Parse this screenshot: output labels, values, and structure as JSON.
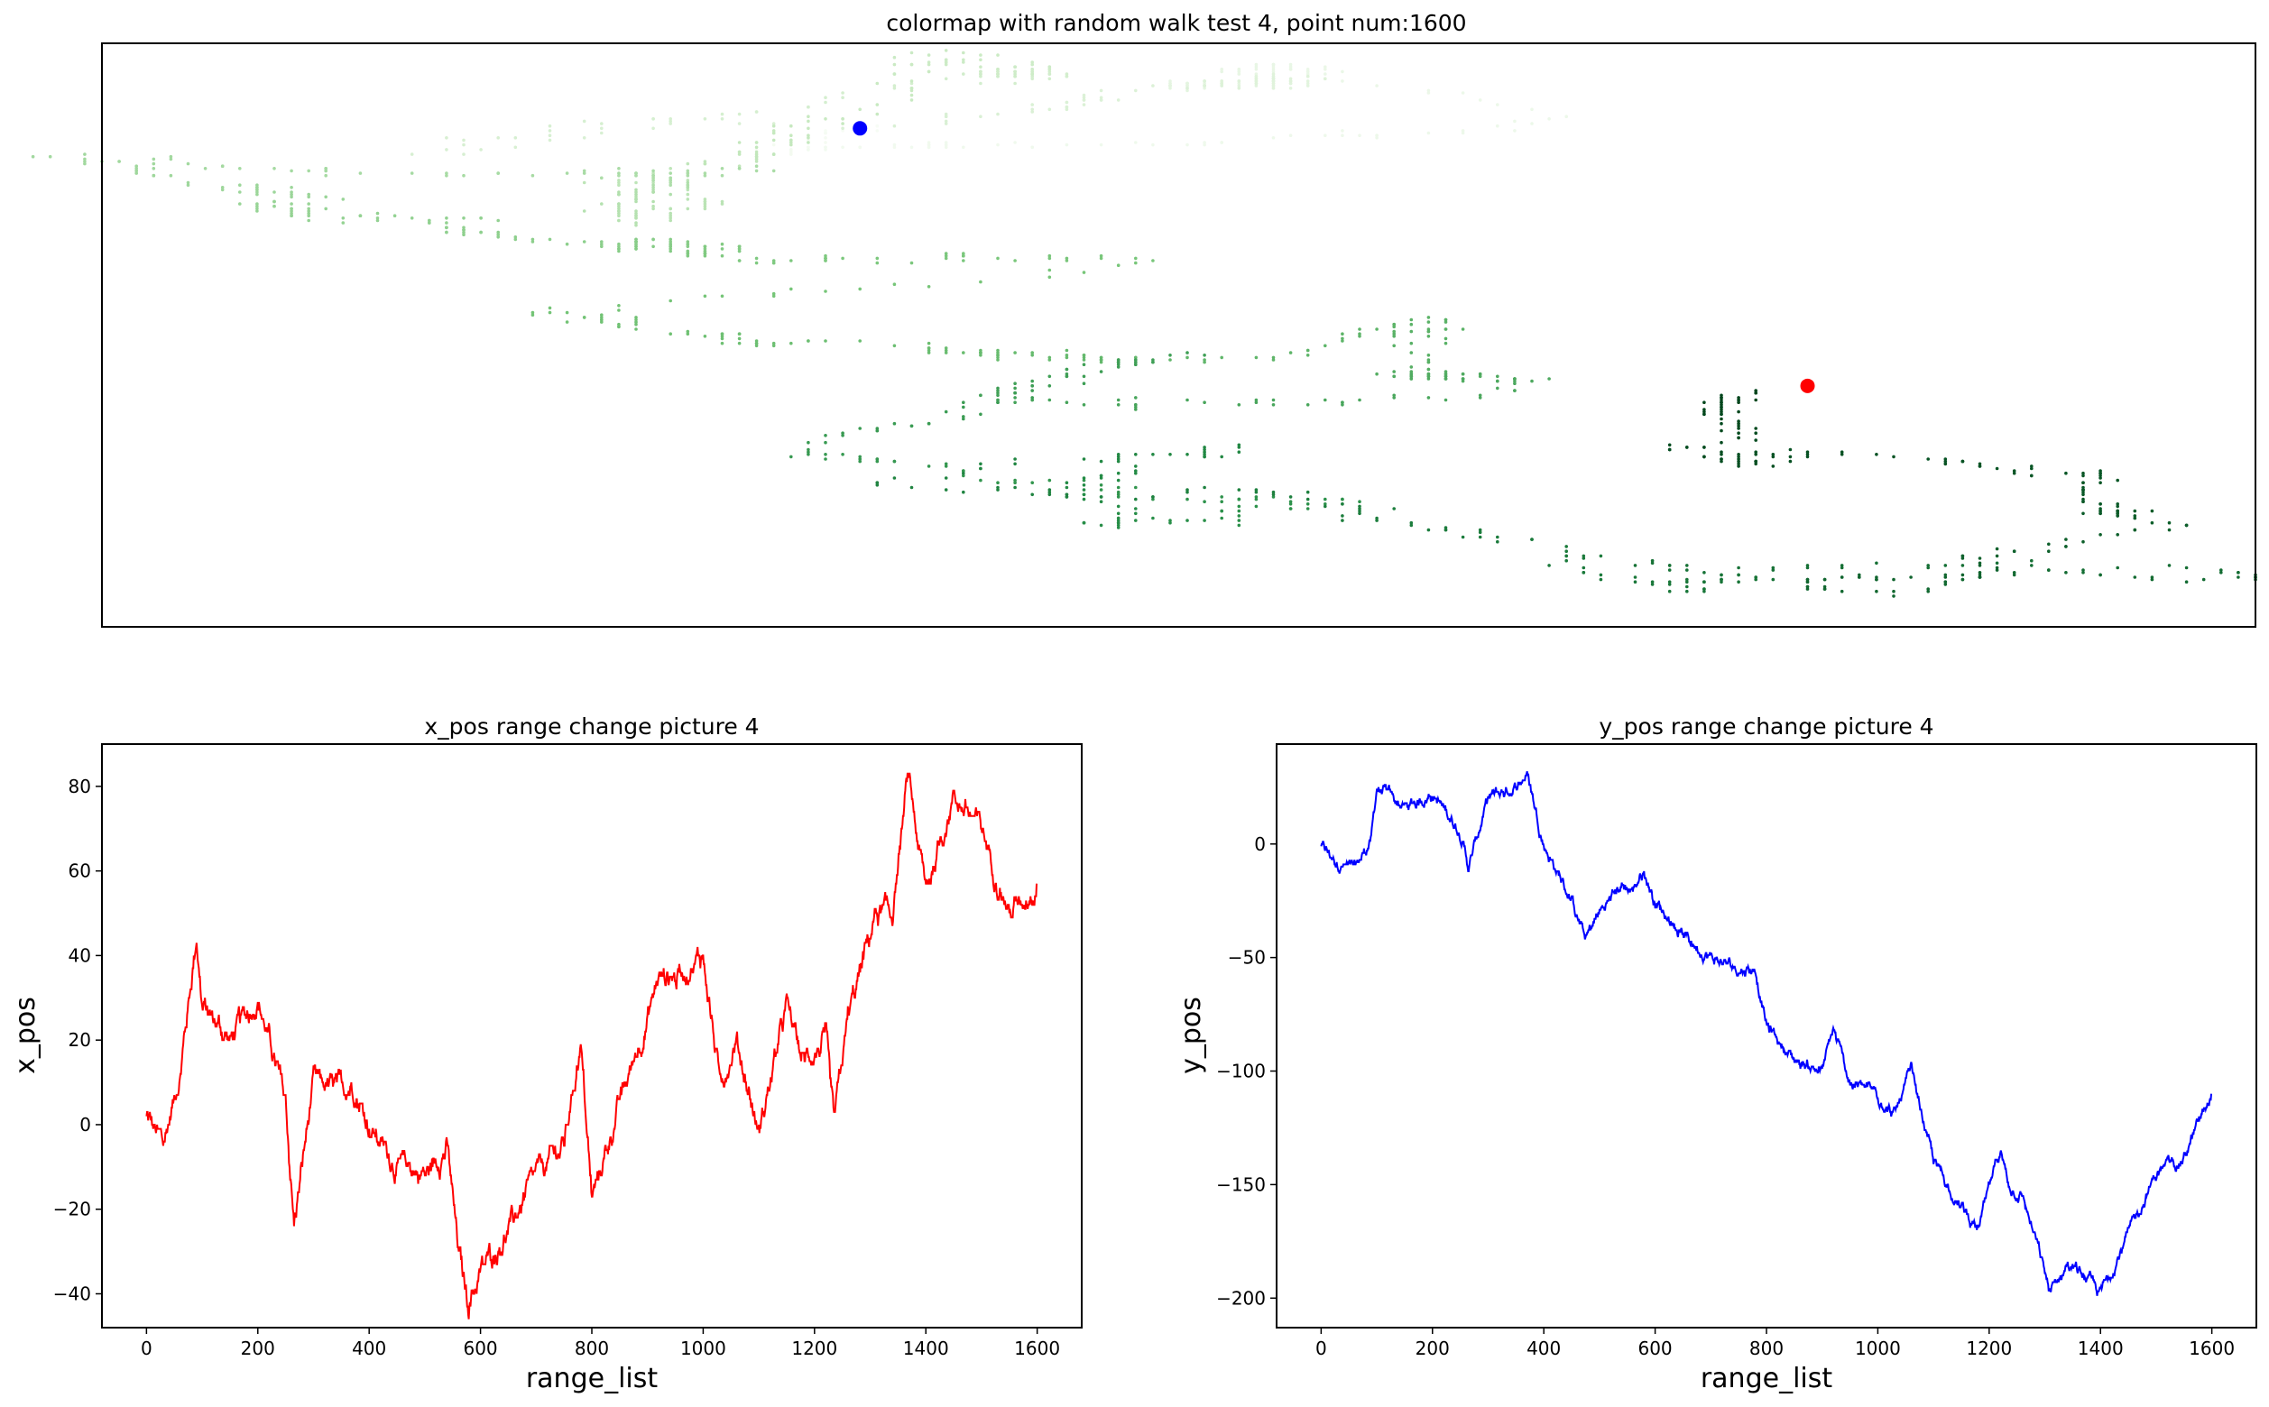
{
  "chart_data": [
    {
      "type": "scatter",
      "title": "colormap with random walk test 4, point num:1600",
      "colormap": "Greens",
      "axes_visible": false,
      "xlim": [
        -42,
        83
      ],
      "ylim": [
        -212,
        35
      ],
      "point_count": 1600,
      "start_point": {
        "x": 2,
        "y": -1,
        "color": "#0000ff"
      },
      "end_point": {
        "x": 57,
        "y": -110,
        "color": "#ff0000"
      },
      "path_keypoints": [
        {
          "step": 0,
          "x": 2,
          "y": -1
        },
        {
          "step": 30,
          "x": -5,
          "y": -8
        },
        {
          "step": 60,
          "x": 12,
          "y": -12
        },
        {
          "step": 90,
          "x": 45,
          "y": 2
        },
        {
          "step": 100,
          "x": 28,
          "y": 25
        },
        {
          "step": 150,
          "x": 20,
          "y": 16
        },
        {
          "step": 200,
          "x": 30,
          "y": 22
        },
        {
          "step": 250,
          "x": 5,
          "y": 6
        },
        {
          "step": 265,
          "x": -24,
          "y": -10
        },
        {
          "step": 300,
          "x": 10,
          "y": 20
        },
        {
          "step": 350,
          "x": 8,
          "y": 25
        },
        {
          "step": 370,
          "x": 10,
          "y": 31
        },
        {
          "step": 400,
          "x": 0,
          "y": 0
        },
        {
          "step": 450,
          "x": -10,
          "y": -25
        },
        {
          "step": 475,
          "x": -10,
          "y": -42
        },
        {
          "step": 500,
          "x": -12,
          "y": -30
        },
        {
          "step": 540,
          "x": -5,
          "y": -18
        },
        {
          "step": 560,
          "x": -30,
          "y": -20
        },
        {
          "step": 578,
          "x": -42,
          "y": -12
        },
        {
          "step": 600,
          "x": -35,
          "y": -25
        },
        {
          "step": 650,
          "x": -25,
          "y": -40
        },
        {
          "step": 700,
          "x": -12,
          "y": -50
        },
        {
          "step": 750,
          "x": -5,
          "y": -55
        },
        {
          "step": 780,
          "x": 20,
          "y": -55
        },
        {
          "step": 800,
          "x": -18,
          "y": -80
        },
        {
          "step": 850,
          "x": 5,
          "y": -95
        },
        {
          "step": 900,
          "x": 25,
          "y": -100
        },
        {
          "step": 920,
          "x": 35,
          "y": -82
        },
        {
          "step": 950,
          "x": 35,
          "y": -105
        },
        {
          "step": 1000,
          "x": 40,
          "y": -110
        },
        {
          "step": 1030,
          "x": 10,
          "y": -120
        },
        {
          "step": 1060,
          "x": 20,
          "y": -100
        },
        {
          "step": 1100,
          "x": -2,
          "y": -140
        },
        {
          "step": 1150,
          "x": 28,
          "y": -160
        },
        {
          "step": 1180,
          "x": 15,
          "y": -170
        },
        {
          "step": 1220,
          "x": 20,
          "y": -135
        },
        {
          "step": 1235,
          "x": -1,
          "y": -150
        },
        {
          "step": 1260,
          "x": 25,
          "y": -155
        },
        {
          "step": 1290,
          "x": 40,
          "y": -180
        },
        {
          "step": 1310,
          "x": 50,
          "y": -198
        },
        {
          "step": 1340,
          "x": 50,
          "y": -185
        },
        {
          "step": 1368,
          "x": 82,
          "y": -190
        },
        {
          "step": 1400,
          "x": 55,
          "y": -198
        },
        {
          "step": 1450,
          "x": 78,
          "y": -172
        },
        {
          "step": 1500,
          "x": 70,
          "y": -145
        },
        {
          "step": 1550,
          "x": 50,
          "y": -138
        },
        {
          "step": 1600,
          "x": 57,
          "y": -110
        }
      ]
    },
    {
      "type": "line",
      "title": "x_pos range change picture 4",
      "xlabel": "range_list",
      "ylabel": "x_pos",
      "xlim": [
        -80,
        1680
      ],
      "ylim": [
        -48,
        90
      ],
      "xticks": [
        0,
        200,
        400,
        600,
        800,
        1000,
        1200,
        1400,
        1600
      ],
      "yticks": [
        -40,
        -20,
        0,
        20,
        40,
        60,
        80
      ],
      "color": "#ff0000",
      "series_source": "x"
    },
    {
      "type": "line",
      "title": "y_pos range change picture 4",
      "xlabel": "range_list",
      "ylabel": "y_pos",
      "xlim": [
        -80,
        1680
      ],
      "ylim": [
        -213,
        44
      ],
      "xticks": [
        0,
        200,
        400,
        600,
        800,
        1000,
        1200,
        1400,
        1600
      ],
      "yticks": [
        -200,
        -150,
        -100,
        -50,
        0
      ],
      "color": "#0000ff",
      "series_source": "y"
    }
  ]
}
